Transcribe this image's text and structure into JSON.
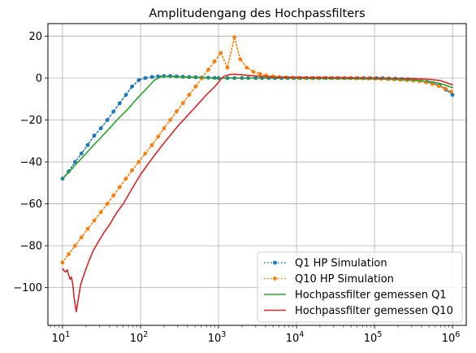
{
  "chart_data": {
    "type": "line",
    "title": "Amplitudengang des Hochpassfilters",
    "xlabel": "",
    "ylabel": "",
    "x_scale": "log",
    "xlim": [
      6.5,
      1500000
    ],
    "ylim": [
      -118,
      26
    ],
    "x_ticks": [
      10,
      100,
      1000,
      10000,
      100000,
      1000000
    ],
    "x_tick_labels": [
      {
        "base": "10",
        "exp": "1"
      },
      {
        "base": "10",
        "exp": "2"
      },
      {
        "base": "10",
        "exp": "3"
      },
      {
        "base": "10",
        "exp": "4"
      },
      {
        "base": "10",
        "exp": "5"
      },
      {
        "base": "10",
        "exp": "6"
      }
    ],
    "y_ticks": [
      20,
      0,
      -20,
      -40,
      -60,
      -80,
      -100
    ],
    "y_tick_labels": [
      "20",
      "0",
      "−20",
      "−40",
      "−60",
      "−80",
      "−100"
    ],
    "grid": true,
    "legend_position": "lower-right",
    "series": [
      {
        "name": "Q1 HP Simulation",
        "color": "#1f77b4",
        "linestyle": "dotted",
        "marker": "circle",
        "x": [
          10,
          12,
          14.5,
          17.5,
          21,
          25.5,
          31,
          37.5,
          45,
          54,
          65,
          78,
          95,
          115,
          140,
          168,
          200,
          240,
          290,
          350,
          420,
          510,
          610,
          740,
          890,
          1000,
          1300,
          1600,
          2000,
          2400,
          3000,
          3600,
          4400,
          5300,
          6400,
          7700,
          9300,
          11200,
          13500,
          16300,
          19600,
          23700,
          28500,
          34400,
          41500,
          50000,
          60300,
          72700,
          87600,
          105600,
          127000,
          153000,
          185000,
          223000,
          269000,
          324000,
          390000,
          471000,
          568000,
          684000,
          825000,
          1000000
        ],
        "y": [
          -48,
          -44.5,
          -40,
          -36,
          -32,
          -27.5,
          -24,
          -20,
          -16,
          -12,
          -8,
          -4,
          -1,
          0,
          0.5,
          0.8,
          1,
          1,
          0.8,
          0.6,
          0.5,
          0.4,
          0.3,
          0.2,
          0.1,
          0,
          0,
          0,
          0,
          0,
          0,
          0,
          0,
          0,
          0,
          0,
          0,
          0,
          0,
          0,
          0,
          0,
          0,
          0,
          0,
          0,
          0,
          0,
          0,
          0,
          0,
          -0.2,
          -0.3,
          -0.5,
          -0.6,
          -0.8,
          -1.2,
          -1.8,
          -2.5,
          -3.5,
          -5.5,
          -8
        ]
      },
      {
        "name": "Q10 HP Simulation",
        "color": "#ff7f0e",
        "linestyle": "dotted",
        "marker": "circle",
        "x": [
          10,
          12,
          14.5,
          17.5,
          21,
          25.5,
          31,
          37.5,
          45,
          54,
          65,
          78,
          95,
          115,
          140,
          168,
          200,
          240,
          290,
          350,
          420,
          510,
          610,
          740,
          890,
          1070,
          1300,
          1600,
          1900,
          2300,
          2800,
          3400,
          4100,
          5000,
          6000,
          7300,
          8800,
          10600,
          12800,
          15500,
          18700,
          22500,
          27200,
          32800,
          39600,
          47800,
          57700,
          69600,
          84000,
          101000,
          122000,
          148000,
          178000,
          215000,
          260000,
          313000,
          378000,
          456000,
          550000,
          663000,
          800000,
          965000
        ],
        "y": [
          -88,
          -84,
          -80,
          -76,
          -72,
          -68,
          -64,
          -60,
          -56,
          -52,
          -48,
          -44,
          -40,
          -36,
          -32,
          -28,
          -24,
          -20,
          -16,
          -12,
          -8,
          -4,
          0,
          4,
          8,
          12,
          5,
          19.5,
          9,
          5,
          3,
          2,
          1.2,
          0.8,
          0.5,
          0.3,
          0.2,
          0.1,
          0,
          0,
          0,
          0,
          0,
          0,
          0,
          0,
          -0.1,
          -0.1,
          -0.2,
          -0.3,
          -0.4,
          -0.5,
          -0.6,
          -0.8,
          -1,
          -1.2,
          -1.5,
          -2,
          -2.8,
          -3.8,
          -5,
          -6.5
        ]
      },
      {
        "name": "Hochpassfilter gemessen Q1",
        "color": "#2ca02c",
        "linestyle": "solid",
        "marker": "none",
        "x": [
          10,
          12,
          15,
          20,
          25,
          30,
          40,
          50,
          60,
          70,
          80,
          100,
          120,
          150,
          180,
          200,
          300,
          500,
          700,
          1000,
          2000,
          5000,
          10000,
          30000,
          100000,
          300000,
          500000,
          700000,
          1000000
        ],
        "y": [
          -48,
          -45,
          -41,
          -36,
          -32,
          -29,
          -24,
          -20,
          -17,
          -14.5,
          -12,
          -8,
          -5,
          -1,
          0.5,
          0.8,
          0.6,
          0.3,
          0,
          0,
          0,
          0,
          0,
          -0.2,
          -0.4,
          -0.9,
          -1.6,
          -2.6,
          -4.5
        ]
      },
      {
        "name": "Hochpassfilter gemessen Q10",
        "color": "#d62728",
        "linestyle": "solid",
        "marker": "none",
        "x": [
          10,
          10.5,
          11,
          11.5,
          12,
          12.5,
          13,
          13.5,
          14,
          14.5,
          15,
          16,
          17,
          18,
          20,
          22,
          25,
          30,
          35,
          40,
          50,
          60,
          80,
          100,
          150,
          200,
          300,
          500,
          700,
          900,
          1000,
          1100,
          1200,
          1400,
          1600,
          2000,
          3000,
          5000,
          10000,
          30000,
          100000,
          300000,
          500000,
          700000,
          1000000
        ],
        "y": [
          -91,
          -92,
          -92.5,
          -91.5,
          -94,
          -96,
          -95,
          -98,
          -104,
          -108,
          -111.5,
          -105,
          -99,
          -96,
          -91,
          -87,
          -82,
          -77,
          -73,
          -70,
          -64,
          -60,
          -52,
          -46,
          -37,
          -31,
          -23,
          -14,
          -8,
          -4,
          -2,
          0,
          1,
          1.7,
          1.8,
          1.6,
          1,
          0.5,
          0.3,
          0.2,
          0,
          -0.2,
          -0.6,
          -1.2,
          -3.2
        ]
      }
    ]
  }
}
